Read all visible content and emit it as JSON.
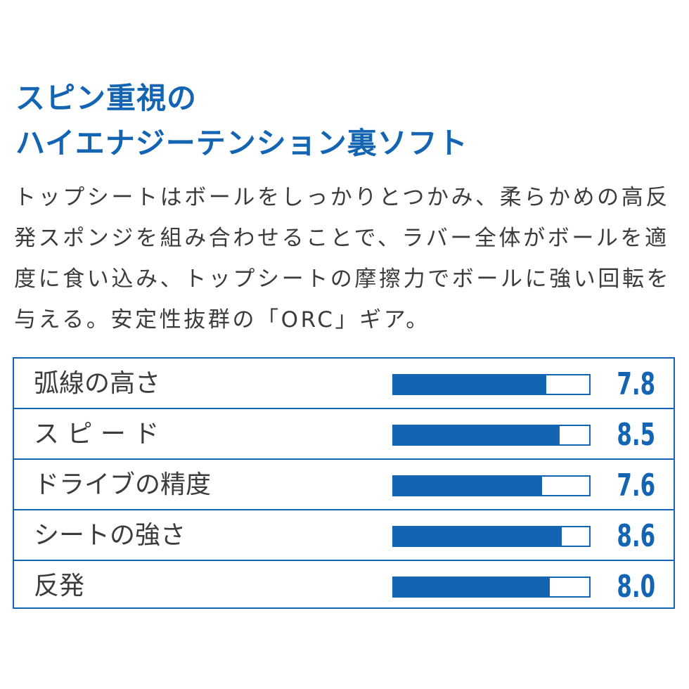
{
  "headline": {
    "line1": "スピン重視の",
    "line2": "ハイエナジーテンション裏ソフト"
  },
  "description": {
    "lines": [
      "トップシートはボールをしっかりとつかみ、柔らかめの高反",
      "発スポンジを組み合わせることで、ラバー全体がボールを適",
      "度に食い込み、トップシートの摩擦力でボールに強い回転を",
      "与える。安定性抜群の「ORC」ギア。"
    ]
  },
  "ratings": {
    "scale_max": 10,
    "accent_color": "#1464b4",
    "items": [
      {
        "label": "弧線の高さ",
        "value": "7.8",
        "fraction": 0.78
      },
      {
        "label": "ス ピ ー ド",
        "value": "8.5",
        "fraction": 0.85
      },
      {
        "label": "ドライブの精度",
        "value": "7.6",
        "fraction": 0.76
      },
      {
        "label": "シートの強さ",
        "value": "8.6",
        "fraction": 0.86
      },
      {
        "label": "反発",
        "value": "8.0",
        "fraction": 0.8
      }
    ]
  }
}
